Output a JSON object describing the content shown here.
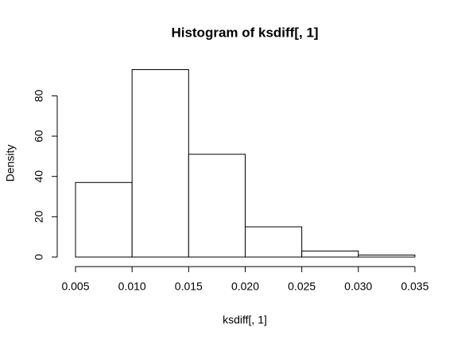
{
  "chart_data": {
    "type": "histogram",
    "title": "Histogram of ksdiff[, 1]",
    "x_label": "ksdiff[, 1]",
    "y_label": "Density",
    "bins": [
      0.005,
      0.01,
      0.015,
      0.02,
      0.025,
      0.03,
      0.035
    ],
    "values": [
      37,
      93,
      51,
      15,
      3,
      1
    ],
    "color": "#ffffff",
    "edge_color": "#000000",
    "xlim": [
      0.005,
      0.035
    ],
    "xticks": [
      0.005,
      {
        "value": 0.01,
        "label": "0.010"
      },
      0.015,
      {
        "value": 0.02,
        "label": "0.020"
      },
      0.025,
      {
        "value": 0.03,
        "label": "0.030"
      },
      0.035
    ],
    "ylim": [
      0,
      93
    ],
    "yticks": [
      0,
      20,
      40,
      60,
      80
    ],
    "grid": false
  }
}
